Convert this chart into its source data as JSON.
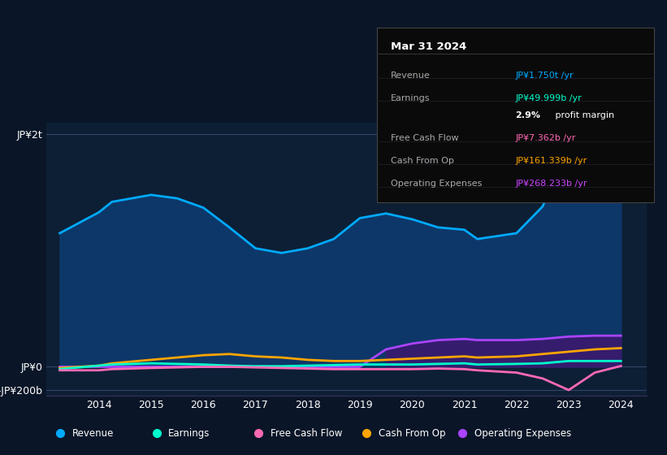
{
  "bg_color": "#0a1628",
  "plot_bg_color": "#0d1f35",
  "years": [
    2013.25,
    2014,
    2014.25,
    2015,
    2015.5,
    2016,
    2016.5,
    2017,
    2017.5,
    2018,
    2018.5,
    2019,
    2019.5,
    2020,
    2020.5,
    2021,
    2021.25,
    2022,
    2022.5,
    2023,
    2023.5,
    2024
  ],
  "revenue": [
    1150,
    1330,
    1420,
    1480,
    1450,
    1370,
    1200,
    1020,
    980,
    1020,
    1100,
    1280,
    1320,
    1270,
    1200,
    1180,
    1100,
    1150,
    1380,
    1900,
    1820,
    1750
  ],
  "earnings": [
    -20,
    10,
    20,
    30,
    25,
    20,
    10,
    5,
    5,
    10,
    15,
    20,
    20,
    20,
    25,
    30,
    20,
    25,
    30,
    50,
    50,
    50
  ],
  "free_cash_flow": [
    -30,
    -30,
    -20,
    -10,
    -5,
    0,
    0,
    -5,
    -10,
    -15,
    -20,
    -20,
    -20,
    -20,
    -15,
    -20,
    -30,
    -50,
    -100,
    -200,
    -50,
    7
  ],
  "cash_from_op": [
    -10,
    10,
    30,
    60,
    80,
    100,
    110,
    90,
    80,
    60,
    50,
    50,
    60,
    70,
    80,
    90,
    80,
    90,
    110,
    130,
    150,
    161
  ],
  "operating_expenses": [
    0,
    0,
    0,
    0,
    0,
    0,
    0,
    0,
    0,
    0,
    0,
    0,
    150,
    200,
    230,
    240,
    230,
    230,
    240,
    260,
    268,
    268
  ],
  "xlim": [
    2013.0,
    2024.5
  ],
  "ylim": [
    -250,
    2100
  ],
  "yticks": [
    -200,
    0,
    2000
  ],
  "ytick_labels": [
    "-JP¥200b",
    "JP¥0",
    "JP¥2t"
  ],
  "xtick_labels": [
    "2014",
    "2015",
    "2016",
    "2017",
    "2018",
    "2019",
    "2020",
    "2021",
    "2022",
    "2023",
    "2024"
  ],
  "xtick_values": [
    2014,
    2015,
    2016,
    2017,
    2018,
    2019,
    2020,
    2021,
    2022,
    2023,
    2024
  ],
  "revenue_color": "#00aaff",
  "earnings_color": "#00ffcc",
  "free_cash_flow_color": "#ff69b4",
  "cash_from_op_color": "#ffa500",
  "operating_expenses_color": "#aa44ff",
  "revenue_fill_color": "#0d3a6e",
  "legend_bg": "#111111",
  "info_box_title": "Mar 31 2024",
  "info_rows": [
    {
      "label": "Revenue",
      "value": "JP¥1.750t /yr",
      "value_color": "#00aaff"
    },
    {
      "label": "Earnings",
      "value": "JP¥49.999b /yr",
      "value_color": "#00ffcc"
    },
    {
      "label": "",
      "value": "2.9% profit margin",
      "value_color": "#ffffff"
    },
    {
      "label": "Free Cash Flow",
      "value": "JP¥7.362b /yr",
      "value_color": "#ff69b4"
    },
    {
      "label": "Cash From Op",
      "value": "JP¥161.339b /yr",
      "value_color": "#ffa500"
    },
    {
      "label": "Operating Expenses",
      "value": "JP¥268.233b /yr",
      "value_color": "#cc44ff"
    }
  ]
}
